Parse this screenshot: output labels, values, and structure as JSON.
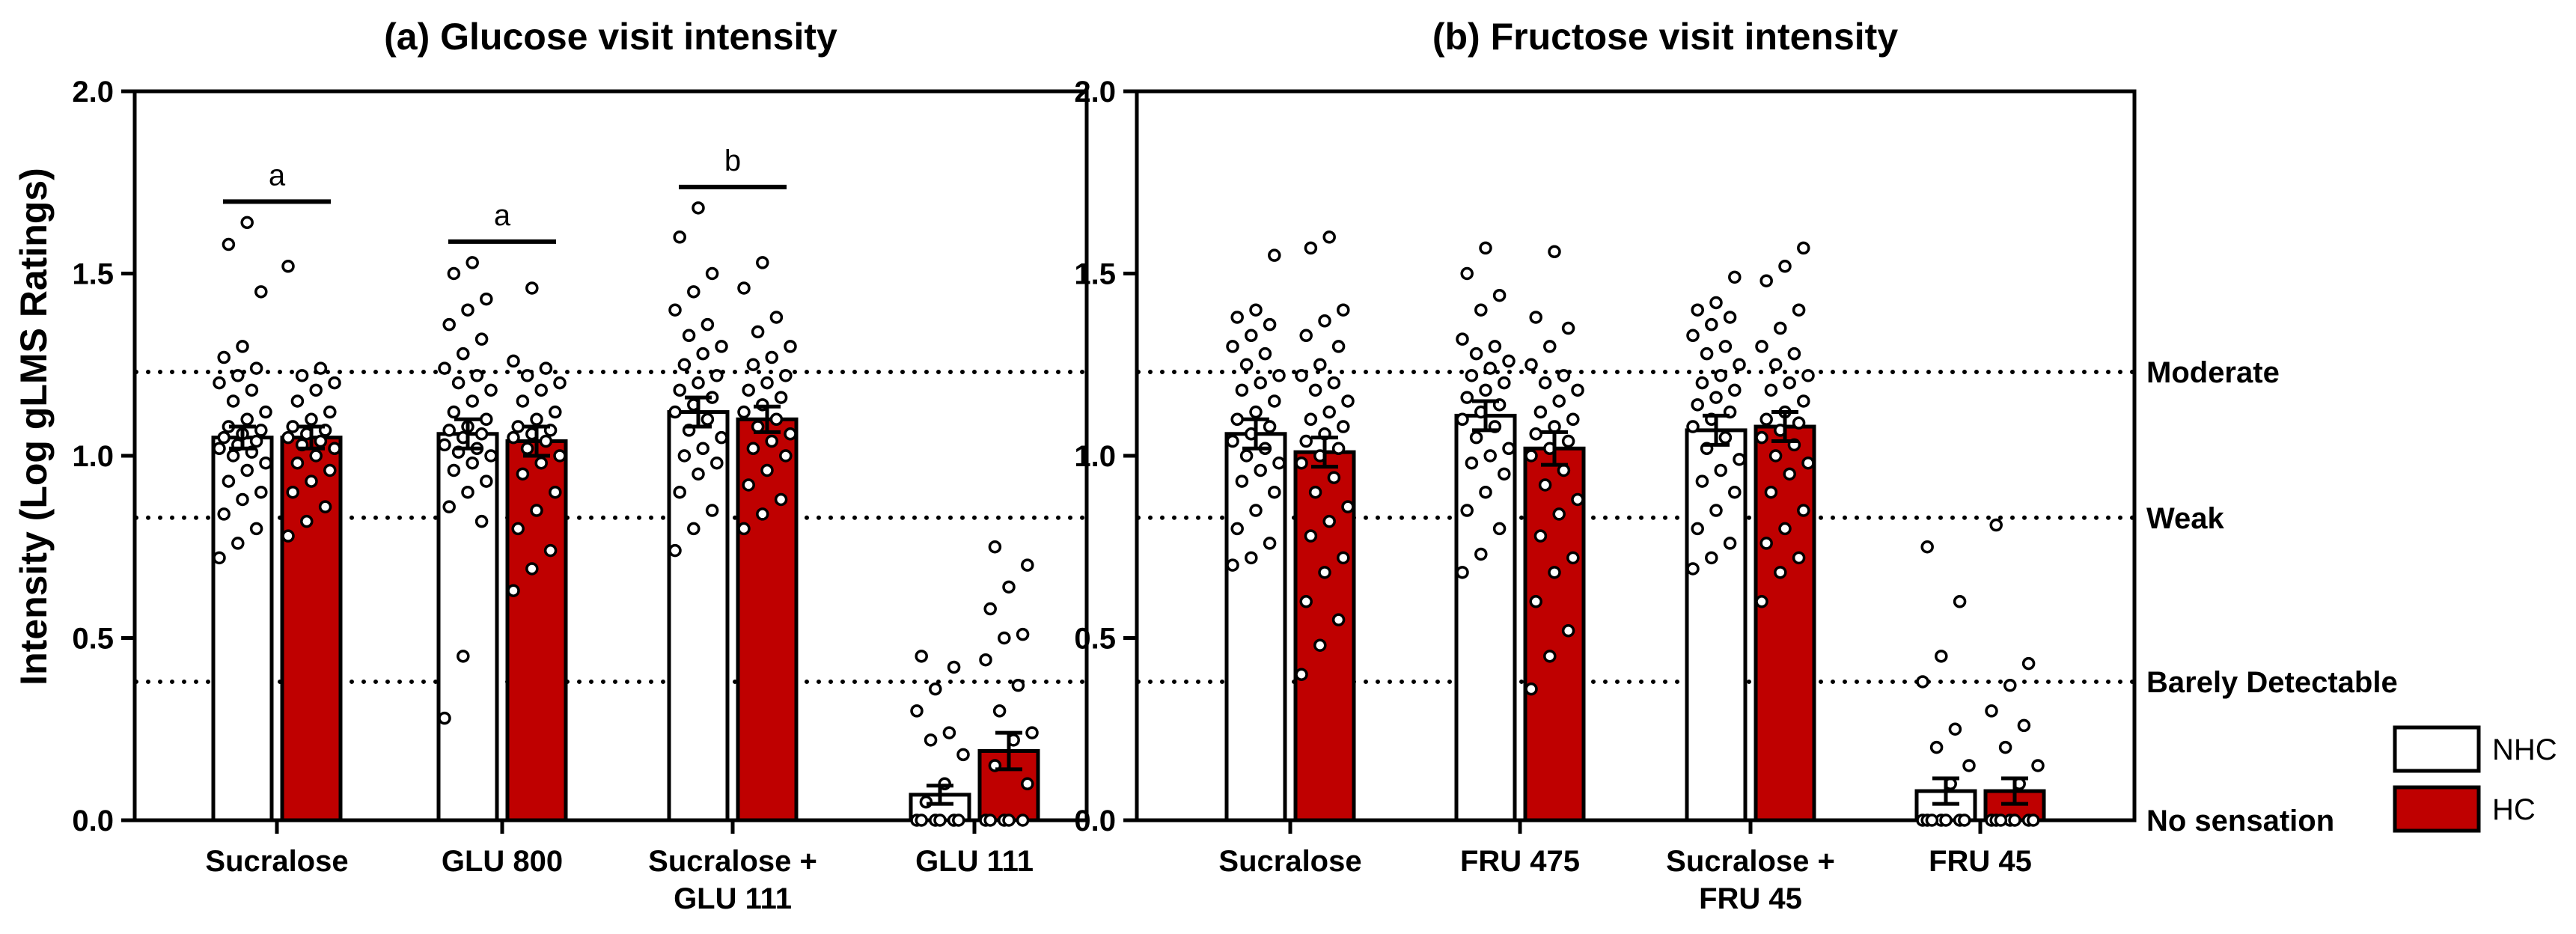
{
  "y_axis_label": "Intensity (Log gLMS Ratings)",
  "legend": [
    {
      "name": "NHC",
      "color": "#ffffff"
    },
    {
      "name": "HC",
      "color": "#bf0000"
    }
  ],
  "reference_lines": [
    {
      "label": "Moderate",
      "value": 1.23
    },
    {
      "label": "Weak",
      "value": 0.83
    },
    {
      "label": "Barely Detectable",
      "value": 0.38
    },
    {
      "label": "No sensation",
      "value": 0.0
    }
  ],
  "chart_data": [
    {
      "type": "bar",
      "title": "(a) Glucose visit intensity",
      "ylabel": "Intensity (Log gLMS Ratings)",
      "ylim": [
        0,
        2.0
      ],
      "yticks": [
        "0.0",
        "0.5",
        "1.0",
        "1.5",
        "2.0"
      ],
      "categories": [
        [
          "Sucralose"
        ],
        [
          "GLU 800"
        ],
        [
          "Sucralose +",
          "GLU 111"
        ],
        [
          "GLU 111"
        ]
      ],
      "series": [
        {
          "name": "NHC",
          "values": [
            1.05,
            1.06,
            1.12,
            0.07
          ],
          "sem": [
            0.03,
            0.04,
            0.04,
            0.025
          ]
        },
        {
          "name": "HC",
          "values": [
            1.05,
            1.04,
            1.1,
            0.19
          ],
          "sem": [
            0.03,
            0.04,
            0.035,
            0.05
          ]
        }
      ],
      "significance": [
        {
          "category": 0,
          "letter": "a"
        },
        {
          "category": 1,
          "letter": "a"
        },
        {
          "category": 2,
          "letter": "b"
        }
      ],
      "points": [
        [
          [
            0.72,
            0.76,
            0.8,
            0.84,
            0.88,
            0.9,
            0.93,
            0.96,
            0.98,
            1.0,
            1.01,
            1.02,
            1.03,
            1.04,
            1.05,
            1.06,
            1.07,
            1.08,
            1.1,
            1.12,
            1.15,
            1.18,
            1.2,
            1.22,
            1.24,
            1.27,
            1.3,
            1.45,
            1.58,
            1.64
          ],
          [
            0.78,
            0.82,
            0.86,
            0.9,
            0.93,
            0.96,
            0.98,
            1.0,
            1.02,
            1.03,
            1.04,
            1.05,
            1.06,
            1.07,
            1.08,
            1.1,
            1.12,
            1.15,
            1.18,
            1.2,
            1.22,
            1.24,
            1.52
          ]
        ],
        [
          [
            0.28,
            0.45,
            0.82,
            0.86,
            0.9,
            0.93,
            0.96,
            0.98,
            1.0,
            1.01,
            1.02,
            1.03,
            1.05,
            1.06,
            1.07,
            1.08,
            1.1,
            1.12,
            1.15,
            1.18,
            1.2,
            1.22,
            1.24,
            1.28,
            1.32,
            1.36,
            1.4,
            1.43,
            1.5,
            1.53
          ],
          [
            0.63,
            0.69,
            0.74,
            0.8,
            0.85,
            0.9,
            0.95,
            0.98,
            1.0,
            1.02,
            1.04,
            1.05,
            1.06,
            1.07,
            1.08,
            1.1,
            1.12,
            1.15,
            1.18,
            1.2,
            1.22,
            1.24,
            1.26,
            1.46
          ]
        ],
        [
          [
            0.74,
            0.8,
            0.85,
            0.9,
            0.95,
            0.98,
            1.0,
            1.02,
            1.05,
            1.07,
            1.1,
            1.12,
            1.14,
            1.16,
            1.18,
            1.2,
            1.22,
            1.25,
            1.28,
            1.3,
            1.33,
            1.36,
            1.4,
            1.45,
            1.5,
            1.6,
            1.68
          ],
          [
            0.8,
            0.84,
            0.88,
            0.92,
            0.96,
            1.0,
            1.02,
            1.04,
            1.06,
            1.08,
            1.1,
            1.12,
            1.14,
            1.16,
            1.18,
            1.2,
            1.22,
            1.25,
            1.27,
            1.3,
            1.34,
            1.38,
            1.46,
            1.53
          ]
        ],
        [
          [
            0.0,
            0.0,
            0.0,
            0.0,
            0.0,
            0.0,
            0.05,
            0.1,
            0.18,
            0.22,
            0.24,
            0.3,
            0.36,
            0.42,
            0.45
          ],
          [
            0.0,
            0.0,
            0.0,
            0.0,
            0.0,
            0.1,
            0.15,
            0.22,
            0.24,
            0.3,
            0.37,
            0.44,
            0.5,
            0.51,
            0.58,
            0.64,
            0.7,
            0.75
          ]
        ]
      ]
    },
    {
      "type": "bar",
      "title": "(b) Fructose visit intensity",
      "ylim": [
        0,
        2.0
      ],
      "yticks": [
        "0.0",
        "0.5",
        "1.0",
        "1.5",
        "2.0"
      ],
      "categories": [
        [
          "Sucralose"
        ],
        [
          "FRU 475"
        ],
        [
          "Sucralose +",
          "FRU 45"
        ],
        [
          "FRU 45"
        ]
      ],
      "series": [
        {
          "name": "NHC",
          "values": [
            1.06,
            1.11,
            1.07,
            0.08
          ],
          "sem": [
            0.04,
            0.04,
            0.04,
            0.035
          ]
        },
        {
          "name": "HC",
          "values": [
            1.01,
            1.02,
            1.08,
            0.08
          ],
          "sem": [
            0.04,
            0.045,
            0.04,
            0.035
          ]
        }
      ],
      "significance": [],
      "points": [
        [
          [
            0.7,
            0.72,
            0.76,
            0.8,
            0.85,
            0.9,
            0.93,
            0.96,
            0.98,
            1.0,
            1.02,
            1.04,
            1.06,
            1.08,
            1.1,
            1.12,
            1.15,
            1.18,
            1.2,
            1.22,
            1.25,
            1.28,
            1.3,
            1.33,
            1.36,
            1.38,
            1.4,
            1.55
          ],
          [
            0.4,
            0.48,
            0.55,
            0.6,
            0.68,
            0.72,
            0.78,
            0.82,
            0.86,
            0.9,
            0.94,
            0.98,
            1.0,
            1.02,
            1.04,
            1.06,
            1.08,
            1.1,
            1.12,
            1.15,
            1.18,
            1.2,
            1.22,
            1.25,
            1.3,
            1.33,
            1.37,
            1.4,
            1.57,
            1.6
          ]
        ],
        [
          [
            0.68,
            0.73,
            0.8,
            0.85,
            0.9,
            0.95,
            0.98,
            1.0,
            1.02,
            1.05,
            1.08,
            1.1,
            1.12,
            1.14,
            1.16,
            1.18,
            1.2,
            1.22,
            1.24,
            1.26,
            1.28,
            1.3,
            1.32,
            1.4,
            1.44,
            1.5,
            1.57
          ],
          [
            0.36,
            0.45,
            0.52,
            0.6,
            0.68,
            0.72,
            0.78,
            0.84,
            0.88,
            0.92,
            0.96,
            1.0,
            1.02,
            1.04,
            1.06,
            1.08,
            1.1,
            1.12,
            1.15,
            1.18,
            1.2,
            1.22,
            1.25,
            1.3,
            1.35,
            1.38,
            1.56
          ]
        ],
        [
          [
            0.69,
            0.72,
            0.76,
            0.8,
            0.85,
            0.9,
            0.93,
            0.96,
            0.99,
            1.02,
            1.05,
            1.08,
            1.1,
            1.12,
            1.14,
            1.16,
            1.18,
            1.2,
            1.22,
            1.25,
            1.28,
            1.3,
            1.33,
            1.36,
            1.38,
            1.4,
            1.42,
            1.49
          ],
          [
            0.6,
            0.68,
            0.72,
            0.76,
            0.8,
            0.85,
            0.9,
            0.95,
            0.98,
            1.0,
            1.03,
            1.05,
            1.07,
            1.09,
            1.1,
            1.12,
            1.15,
            1.18,
            1.2,
            1.22,
            1.25,
            1.28,
            1.3,
            1.35,
            1.4,
            1.48,
            1.52,
            1.57
          ]
        ],
        [
          [
            0.0,
            0.0,
            0.0,
            0.0,
            0.0,
            0.0,
            0.0,
            0.1,
            0.15,
            0.2,
            0.25,
            0.38,
            0.45,
            0.6,
            0.75
          ],
          [
            0.0,
            0.0,
            0.0,
            0.0,
            0.0,
            0.0,
            0.0,
            0.1,
            0.15,
            0.2,
            0.26,
            0.3,
            0.37,
            0.43,
            0.81
          ]
        ]
      ]
    }
  ]
}
